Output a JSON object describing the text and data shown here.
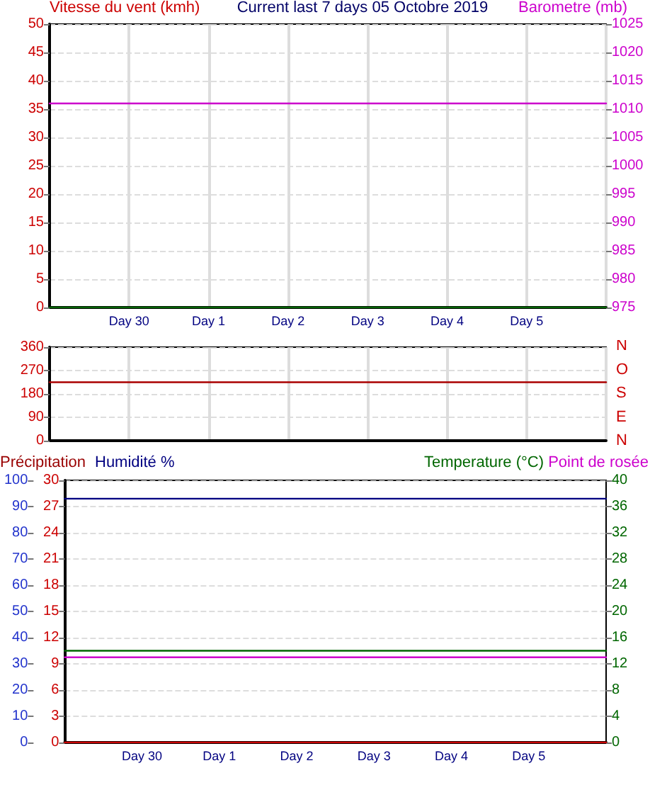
{
  "chart_data": [
    {
      "type": "line",
      "title": "Current last 7 days 05 Octobre 2019",
      "ylabel": "Vitesse du vent (kmh)",
      "y2label": "Barometre (mb)",
      "categories": [
        null,
        "Day 30",
        "Day 1",
        "Day 2",
        "Day 3",
        "Day 4",
        "Day 5",
        null
      ],
      "series": [
        {
          "color": "#cc00cc",
          "axis": "y2",
          "values": [
            1011,
            1011,
            1011,
            1011,
            1011,
            1011,
            1011,
            1011
          ]
        },
        {
          "color": "#006600",
          "values": [
            0,
            0,
            0,
            0,
            0,
            0,
            0,
            0
          ]
        }
      ],
      "ylim": [
        0,
        50
      ],
      "yticks": [
        0,
        5,
        10,
        15,
        20,
        25,
        30,
        35,
        40,
        45,
        50
      ],
      "y2lim": [
        975,
        1025
      ],
      "y2ticks": [
        975,
        980,
        985,
        990,
        995,
        1000,
        1005,
        1010,
        1015,
        1020,
        1025
      ],
      "grid": true,
      "legend": false,
      "marker": "none",
      "line_style": "solid"
    },
    {
      "type": "line",
      "categories": [
        null,
        null,
        null,
        null,
        null,
        null,
        null,
        null
      ],
      "series": [
        {
          "color": "#aa0000",
          "values": [
            225,
            225,
            225,
            225,
            225,
            225,
            225,
            225
          ]
        }
      ],
      "ylim": [
        0,
        360
      ],
      "yticks": [
        0,
        90,
        180,
        270,
        360
      ],
      "annotations": [
        "N",
        "O",
        "S",
        "E",
        "N"
      ],
      "grid": true,
      "legend": false,
      "marker": "none",
      "line_style": "solid"
    },
    {
      "type": "line",
      "ylabel": "Précipitation",
      "y3label": "Humidité %",
      "y2label": "Temperature (°C)",
      "categories": [
        null,
        "Day 30",
        "Day 1",
        "Day 2",
        "Day 3",
        "Day 4",
        "Day 5",
        null
      ],
      "series": [
        {
          "color": "#000080",
          "axis": "y3",
          "values": [
            93,
            93,
            93,
            93,
            93,
            93,
            93,
            93
          ]
        },
        {
          "color": "#006600",
          "axis": "y2",
          "values": [
            14,
            14,
            14,
            14,
            14,
            14,
            14,
            14
          ]
        },
        {
          "name": "Point de rosée",
          "color": "#cc00cc",
          "axis": "y2",
          "values": [
            13,
            13,
            13,
            13,
            13,
            13,
            13,
            13
          ]
        },
        {
          "color": "#cc0000",
          "values": [
            0,
            0,
            0,
            0,
            0,
            0,
            0,
            0
          ]
        }
      ],
      "ylim": [
        0,
        30
      ],
      "yticks": [
        0,
        3,
        6,
        9,
        12,
        15,
        18,
        21,
        24,
        27,
        30
      ],
      "y3lim": [
        0,
        100
      ],
      "y3ticks": [
        0,
        10,
        20,
        30,
        40,
        50,
        60,
        70,
        80,
        90,
        100
      ],
      "y2lim": [
        0,
        40
      ],
      "y2ticks": [
        0,
        4,
        8,
        12,
        16,
        20,
        24,
        28,
        32,
        36,
        40
      ],
      "grid": "y",
      "legend": false,
      "marker": "none",
      "line_style": "solid"
    }
  ]
}
